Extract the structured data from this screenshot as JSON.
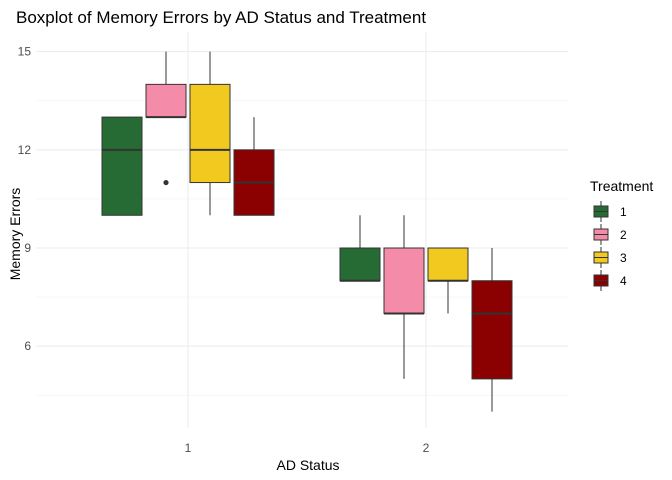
{
  "chart_data": {
    "type": "boxplot",
    "title": "Boxplot of Memory Errors by AD Status and Treatment",
    "xlabel": "AD Status",
    "ylabel": "Memory Errors",
    "categories": [
      "1",
      "2"
    ],
    "ylim": [
      3.5,
      15.6
    ],
    "yticks": [
      6,
      9,
      12,
      15
    ],
    "ytick_labels": [
      "6",
      "9",
      "12",
      "15"
    ],
    "grid": true,
    "legend": {
      "title": "Treatment",
      "placement": "right",
      "entries": [
        "1",
        "2",
        "3",
        "4"
      ]
    },
    "series": [
      {
        "name": "1",
        "color": "#276b34",
        "boxes": [
          {
            "category": "1",
            "whisker_low": 10,
            "q1": 10,
            "median": 12,
            "q3": 13,
            "whisker_high": 13,
            "outliers": []
          },
          {
            "category": "2",
            "whisker_low": 8,
            "q1": 8,
            "median": 8,
            "q3": 9,
            "whisker_high": 10,
            "outliers": []
          }
        ]
      },
      {
        "name": "2",
        "color": "#f48ca9",
        "boxes": [
          {
            "category": "1",
            "whisker_low": 13,
            "q1": 13,
            "median": 13,
            "q3": 14,
            "whisker_high": 15,
            "outliers": [
              11
            ]
          },
          {
            "category": "2",
            "whisker_low": 5,
            "q1": 7,
            "median": 7,
            "q3": 9,
            "whisker_high": 10,
            "outliers": []
          }
        ]
      },
      {
        "name": "3",
        "color": "#f2c91f",
        "boxes": [
          {
            "category": "1",
            "whisker_low": 10,
            "q1": 11,
            "median": 12,
            "q3": 14,
            "whisker_high": 15,
            "outliers": []
          },
          {
            "category": "2",
            "whisker_low": 7,
            "q1": 8,
            "median": 8,
            "q3": 9,
            "whisker_high": 9,
            "outliers": []
          }
        ]
      },
      {
        "name": "4",
        "color": "#8b0000",
        "boxes": [
          {
            "category": "1",
            "whisker_low": 10,
            "q1": 10,
            "median": 11,
            "q3": 12,
            "whisker_high": 13,
            "outliers": []
          },
          {
            "category": "2",
            "whisker_low": 4,
            "q1": 5,
            "median": 7,
            "q3": 8,
            "whisker_high": 9,
            "outliers": []
          }
        ]
      }
    ]
  }
}
